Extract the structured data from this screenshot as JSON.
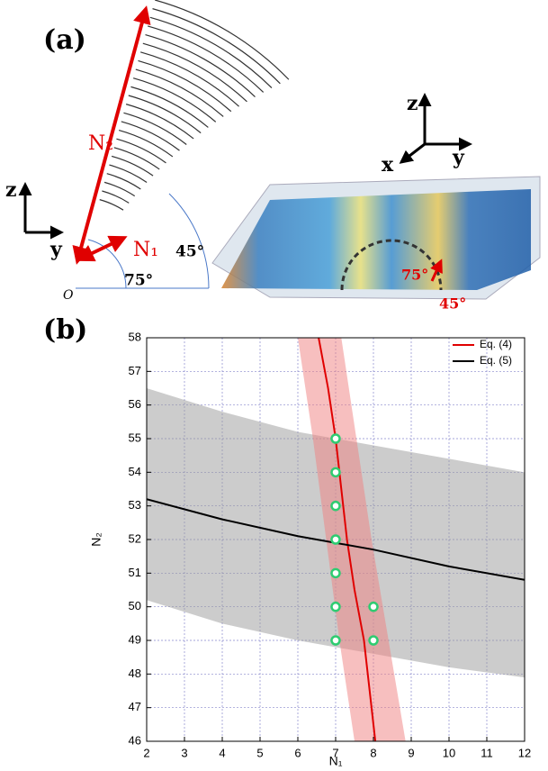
{
  "panel_a": {
    "label": "(a)",
    "n2": "N₂",
    "n1": "N₁",
    "angle_45": "45°",
    "angle_75": "75°",
    "origin": "O",
    "axis_z": "z",
    "axis_y": "y",
    "axis3d_z": "z",
    "axis3d_y": "y",
    "axis3d_x": "x",
    "angle3d_75": "75°",
    "angle3d_45": "45°"
  },
  "panel_b_label": "(b)",
  "chart_data": {
    "type": "line",
    "xlabel": "N₁",
    "ylabel": "N₂",
    "xlim": [
      2,
      12
    ],
    "ylim": [
      46,
      58
    ],
    "xticks": [
      2,
      3,
      4,
      5,
      6,
      7,
      8,
      9,
      10,
      11,
      12
    ],
    "yticks": [
      46,
      47,
      48,
      49,
      50,
      51,
      52,
      53,
      54,
      55,
      56,
      57,
      58
    ],
    "grid": true,
    "legend": "upper right",
    "series": [
      {
        "name": "Eq. (4)",
        "color": "#e00000",
        "x": [
          6.55,
          6.8,
          7.0,
          7.15,
          7.3,
          7.5,
          7.75,
          7.9,
          8.05
        ],
        "values": [
          58,
          56.5,
          55,
          53.5,
          52,
          50.5,
          49,
          47.5,
          46
        ]
      },
      {
        "name": "Eq. (5)",
        "color": "#000000",
        "x": [
          2,
          4,
          6,
          8,
          10,
          12
        ],
        "values": [
          53.2,
          52.6,
          52.1,
          51.7,
          51.2,
          50.8
        ]
      }
    ],
    "bands": [
      {
        "color": "#9a9a9a",
        "edges": [
          {
            "x": [
              2,
              4,
              6,
              8,
              10,
              12
            ],
            "values": [
              56.5,
              55.8,
              55.2,
              54.8,
              54.4,
              54.0
            ]
          },
          {
            "x": [
              2,
              4,
              6,
              8,
              10,
              12
            ],
            "values": [
              50.2,
              49.5,
              49.0,
              48.6,
              48.2,
              47.9
            ]
          }
        ]
      },
      {
        "color": "#f08080",
        "edges": [
          {
            "x": [
              6.0,
              6.4,
              6.75,
              7.1,
              7.5
            ],
            "values": [
              58,
              55,
              52,
              49,
              46
            ]
          },
          {
            "x": [
              7.15,
              7.55,
              7.95,
              8.4,
              8.85
            ],
            "values": [
              58,
              55,
              52,
              49,
              46
            ]
          }
        ]
      }
    ],
    "points": {
      "color": "#2ecc71",
      "x": [
        7,
        7,
        7,
        7,
        7,
        7,
        7,
        8,
        8
      ],
      "values": [
        55,
        54,
        53,
        52,
        51,
        50,
        49,
        50,
        49
      ]
    }
  }
}
